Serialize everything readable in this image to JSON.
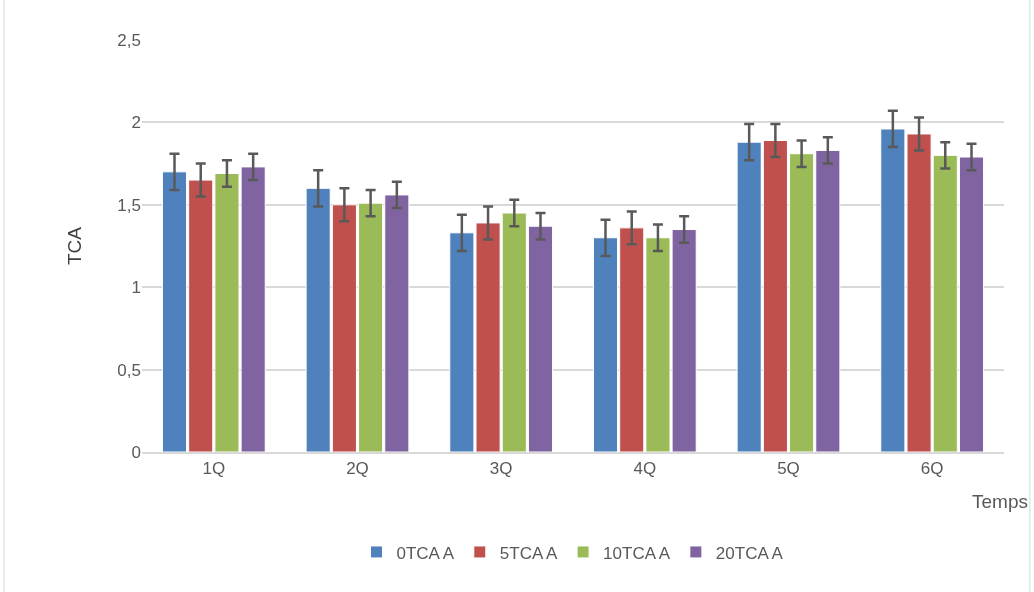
{
  "chart_data": {
    "type": "bar",
    "xlabel": "Temps",
    "ylabel": "TCA",
    "categories": [
      "1Q",
      "2Q",
      "3Q",
      "4Q",
      "5Q",
      "6Q"
    ],
    "series": [
      {
        "name": "0TCA A",
        "color": "#4f81bd",
        "values": [
          1.7,
          1.6,
          1.33,
          1.3,
          1.88,
          1.96
        ],
        "errors": [
          0.11,
          0.11,
          0.11,
          0.11,
          0.11,
          0.11
        ]
      },
      {
        "name": "5TCA A",
        "color": "#c0504d",
        "values": [
          1.65,
          1.5,
          1.39,
          1.36,
          1.89,
          1.93
        ],
        "errors": [
          0.1,
          0.1,
          0.1,
          0.1,
          0.1,
          0.1
        ]
      },
      {
        "name": "10TCA A",
        "color": "#9bbb59",
        "values": [
          1.69,
          1.51,
          1.45,
          1.3,
          1.81,
          1.8
        ],
        "errors": [
          0.08,
          0.08,
          0.08,
          0.08,
          0.08,
          0.08
        ]
      },
      {
        "name": "20TCA A",
        "color": "#8064a2",
        "values": [
          1.73,
          1.56,
          1.37,
          1.35,
          1.83,
          1.79
        ],
        "errors": [
          0.08,
          0.08,
          0.08,
          0.08,
          0.08,
          0.08
        ]
      }
    ],
    "ylim": [
      0,
      2.5
    ],
    "yticks": [
      0,
      {
        "value": 0.5,
        "label": "0,5"
      },
      1,
      {
        "value": 1.5,
        "label": "1,5"
      },
      2,
      {
        "value": 2.5,
        "label": "2,5"
      }
    ],
    "grid": "y",
    "legend": "bottom"
  }
}
